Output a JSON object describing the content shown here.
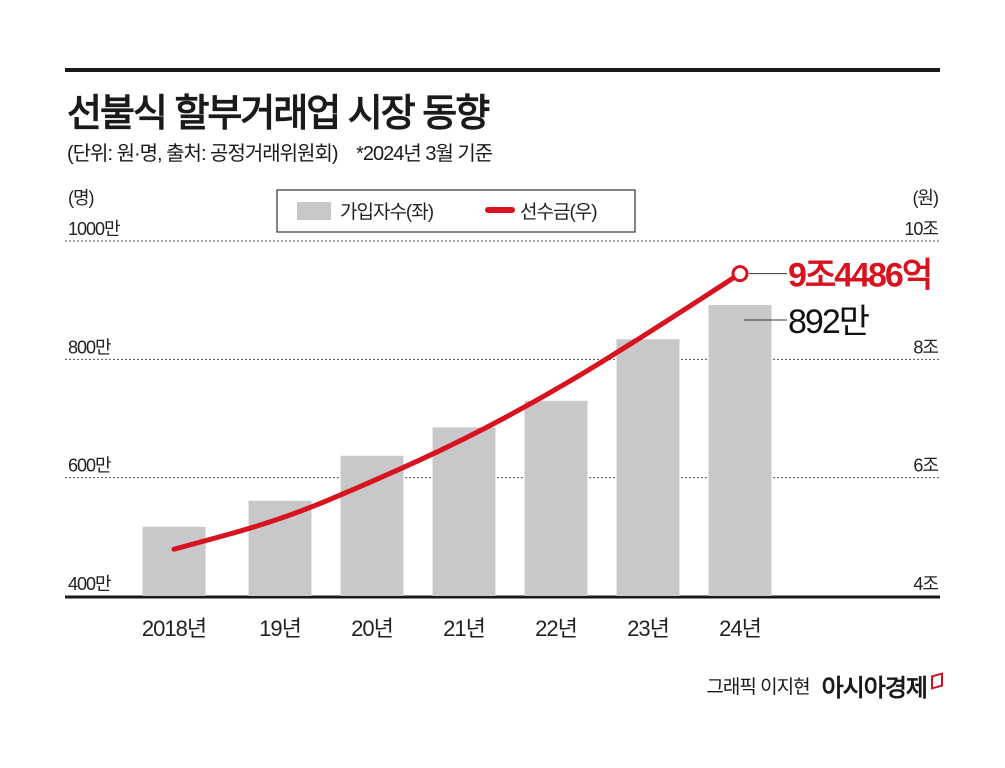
{
  "title": "선불식 할부거래업 시장 동향",
  "subtitle": {
    "unit_source": "(단위: 원·명, 출처: 공정거래위원회)",
    "note": "*2024년 3월 기준"
  },
  "footer": {
    "credit": "그래픽 이지현",
    "logo": "아시아경제"
  },
  "chart_data": {
    "type": "bar+line",
    "categories": [
      "2018년",
      "19년",
      "20년",
      "21년",
      "22년",
      "23년",
      "24년"
    ],
    "series": [
      {
        "name": "가입자수(좌)",
        "type": "bar",
        "axis": "left",
        "unit": "만 명",
        "color": "#c8c8ca",
        "values": [
          517,
          561,
          637,
          685,
          730,
          834,
          892
        ]
      },
      {
        "name": "선수금(우)",
        "type": "line",
        "axis": "right",
        "unit": "조 원",
        "color": "#d8121e",
        "values": [
          4.79,
          5.28,
          5.93,
          6.64,
          7.48,
          8.44,
          9.4486
        ]
      }
    ],
    "left_axis": {
      "label": "(명)",
      "ylim": [
        400,
        1000
      ],
      "ticks": [
        400,
        600,
        800,
        1000
      ],
      "tick_labels": [
        "400만",
        "600만",
        "800만",
        "1000만"
      ]
    },
    "right_axis": {
      "label": "(원)",
      "ylim": [
        4,
        10
      ],
      "ticks": [
        4,
        6,
        8,
        10
      ],
      "tick_labels": [
        "4조",
        "6조",
        "8조",
        "10조"
      ]
    },
    "annotations": {
      "line_last": "9조4486억",
      "bar_last": "892만"
    },
    "grid": "dotted horizontal",
    "legend": "top-center"
  }
}
